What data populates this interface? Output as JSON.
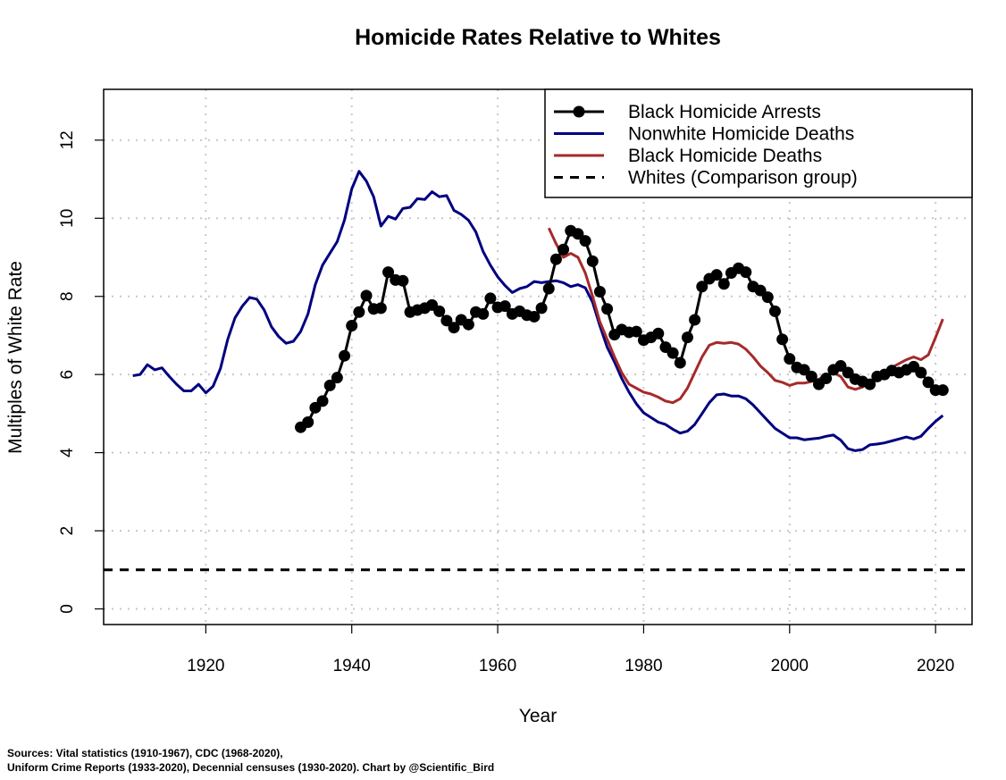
{
  "chart_data": {
    "type": "line",
    "title": "Homicide Rates Relative to Whites",
    "xlabel": "Year",
    "ylabel": "Multiples of White Rate",
    "xlim": [
      1906,
      2025
    ],
    "ylim": [
      -0.4,
      13.3
    ],
    "xticks": [
      1920,
      1940,
      1960,
      1980,
      2000,
      2020
    ],
    "yticks": [
      0,
      2,
      4,
      6,
      8,
      10,
      12
    ],
    "grid": true,
    "legend_position": "top-right",
    "series": [
      {
        "name": "Black Homicide Arrests",
        "color": "#000000",
        "markers": true,
        "x": [
          1933,
          1934,
          1935,
          1936,
          1937,
          1938,
          1939,
          1940,
          1941,
          1942,
          1943,
          1944,
          1945,
          1946,
          1947,
          1948,
          1949,
          1950,
          1951,
          1952,
          1953,
          1954,
          1955,
          1956,
          1957,
          1958,
          1959,
          1960,
          1961,
          1962,
          1963,
          1964,
          1965,
          1966,
          1967,
          1968,
          1969,
          1970,
          1971,
          1972,
          1973,
          1974,
          1975,
          1976,
          1977,
          1978,
          1979,
          1980,
          1981,
          1982,
          1983,
          1984,
          1985,
          1986,
          1987,
          1988,
          1989,
          1990,
          1991,
          1992,
          1993,
          1994,
          1995,
          1996,
          1997,
          1998,
          1999,
          2000,
          2001,
          2002,
          2003,
          2004,
          2005,
          2006,
          2007,
          2008,
          2009,
          2010,
          2011,
          2012,
          2013,
          2014,
          2015,
          2016,
          2017,
          2018,
          2019,
          2020,
          2021
        ],
        "y": [
          4.65,
          4.78,
          5.15,
          5.32,
          5.72,
          5.92,
          6.48,
          7.25,
          7.6,
          8.02,
          7.68,
          7.7,
          8.62,
          8.42,
          8.4,
          7.6,
          7.65,
          7.7,
          7.78,
          7.62,
          7.38,
          7.2,
          7.4,
          7.28,
          7.6,
          7.55,
          7.95,
          7.72,
          7.75,
          7.55,
          7.62,
          7.52,
          7.48,
          7.7,
          8.2,
          8.95,
          9.2,
          9.68,
          9.6,
          9.42,
          8.9,
          8.12,
          7.68,
          7.02,
          7.15,
          7.08,
          7.1,
          6.88,
          6.95,
          7.05,
          6.7,
          6.55,
          6.3,
          6.95,
          7.4,
          8.25,
          8.45,
          8.55,
          8.32,
          8.6,
          8.72,
          8.62,
          8.25,
          8.15,
          7.98,
          7.62,
          6.9,
          6.4,
          6.18,
          6.12,
          5.95,
          5.75,
          5.9,
          6.12,
          6.22,
          6.05,
          5.88,
          5.82,
          5.75,
          5.95,
          6.0,
          6.1,
          6.05,
          6.12,
          6.2,
          6.05,
          5.8,
          5.6,
          5.6
        ]
      },
      {
        "name": "Nonwhite Homicide Deaths",
        "color": "#000080",
        "markers": false,
        "x": [
          1910,
          1911,
          1912,
          1913,
          1914,
          1915,
          1916,
          1917,
          1918,
          1919,
          1920,
          1921,
          1922,
          1923,
          1924,
          1925,
          1926,
          1927,
          1928,
          1929,
          1930,
          1931,
          1932,
          1933,
          1934,
          1935,
          1936,
          1937,
          1938,
          1939,
          1940,
          1941,
          1942,
          1943,
          1944,
          1945,
          1946,
          1947,
          1948,
          1949,
          1950,
          1951,
          1952,
          1953,
          1954,
          1955,
          1956,
          1957,
          1958,
          1959,
          1960,
          1961,
          1962,
          1963,
          1964,
          1965,
          1966,
          1967,
          1968,
          1969,
          1970,
          1971,
          1972,
          1973,
          1974,
          1975,
          1976,
          1977,
          1978,
          1979,
          1980,
          1981,
          1982,
          1983,
          1984,
          1985,
          1986,
          1987,
          1988,
          1989,
          1990,
          1991,
          1992,
          1993,
          1994,
          1995,
          1996,
          1997,
          1998,
          1999,
          2000,
          2001,
          2002,
          2003,
          2004,
          2005,
          2006,
          2007,
          2008,
          2009,
          2010,
          2011,
          2012,
          2013,
          2014,
          2015,
          2016,
          2017,
          2018,
          2019,
          2020,
          2021
        ],
        "y": [
          5.97,
          6.0,
          6.25,
          6.12,
          6.17,
          5.95,
          5.75,
          5.58,
          5.58,
          5.75,
          5.53,
          5.7,
          6.15,
          6.9,
          7.45,
          7.75,
          7.97,
          7.93,
          7.65,
          7.22,
          6.97,
          6.8,
          6.85,
          7.1,
          7.55,
          8.3,
          8.8,
          9.1,
          9.4,
          9.95,
          10.75,
          11.2,
          10.95,
          10.55,
          9.8,
          10.05,
          9.98,
          10.25,
          10.28,
          10.5,
          10.48,
          10.68,
          10.55,
          10.58,
          10.2,
          10.1,
          9.95,
          9.65,
          9.15,
          8.8,
          8.5,
          8.28,
          8.1,
          8.2,
          8.25,
          8.38,
          8.35,
          8.38,
          8.4,
          8.35,
          8.25,
          8.3,
          8.22,
          7.85,
          7.25,
          6.7,
          6.32,
          5.9,
          5.55,
          5.25,
          5.02,
          4.9,
          4.78,
          4.72,
          4.6,
          4.5,
          4.55,
          4.72,
          5.0,
          5.28,
          5.48,
          5.5,
          5.45,
          5.45,
          5.38,
          5.22,
          5.02,
          4.82,
          4.62,
          4.5,
          4.38,
          4.38,
          4.33,
          4.35,
          4.37,
          4.42,
          4.45,
          4.32,
          4.1,
          4.05,
          4.08,
          4.2,
          4.22,
          4.25,
          4.3,
          4.35,
          4.4,
          4.35,
          4.42,
          4.62,
          4.8,
          4.95
        ]
      },
      {
        "name": "Black Homicide Deaths",
        "color": "#a52a2a",
        "markers": false,
        "x": [
          1967,
          1968,
          1969,
          1970,
          1971,
          1972,
          1973,
          1974,
          1975,
          1976,
          1977,
          1978,
          1979,
          1980,
          1981,
          1982,
          1983,
          1984,
          1985,
          1986,
          1987,
          1988,
          1989,
          1990,
          1991,
          1992,
          1993,
          1994,
          1995,
          1996,
          1997,
          1998,
          1999,
          2000,
          2001,
          2002,
          2003,
          2004,
          2005,
          2006,
          2007,
          2008,
          2009,
          2010,
          2011,
          2012,
          2013,
          2014,
          2015,
          2016,
          2017,
          2018,
          2019,
          2020,
          2021
        ],
        "y": [
          9.75,
          9.35,
          9.0,
          9.1,
          9.0,
          8.6,
          8.0,
          7.35,
          6.9,
          6.45,
          6.05,
          5.75,
          5.65,
          5.55,
          5.5,
          5.42,
          5.32,
          5.28,
          5.38,
          5.65,
          6.05,
          6.45,
          6.75,
          6.82,
          6.8,
          6.82,
          6.78,
          6.65,
          6.45,
          6.22,
          6.05,
          5.85,
          5.8,
          5.72,
          5.78,
          5.78,
          5.82,
          5.88,
          5.98,
          6.05,
          5.95,
          5.68,
          5.62,
          5.68,
          5.82,
          5.95,
          6.05,
          6.18,
          6.28,
          6.38,
          6.45,
          6.38,
          6.5,
          6.95,
          7.42
        ]
      },
      {
        "name": "Whites (Comparison group)",
        "color": "#000000",
        "markers": false,
        "dashed": true,
        "x": [
          1906,
          2025
        ],
        "y": [
          1,
          1
        ]
      }
    ]
  },
  "sources": {
    "line1": "Sources: Vital statistics (1910-1967), CDC (1968-2020),",
    "line2": "Uniform Crime Reports (1933-2020), Decennial censuses (1930-2020). Chart by @Scientific_Bird"
  }
}
